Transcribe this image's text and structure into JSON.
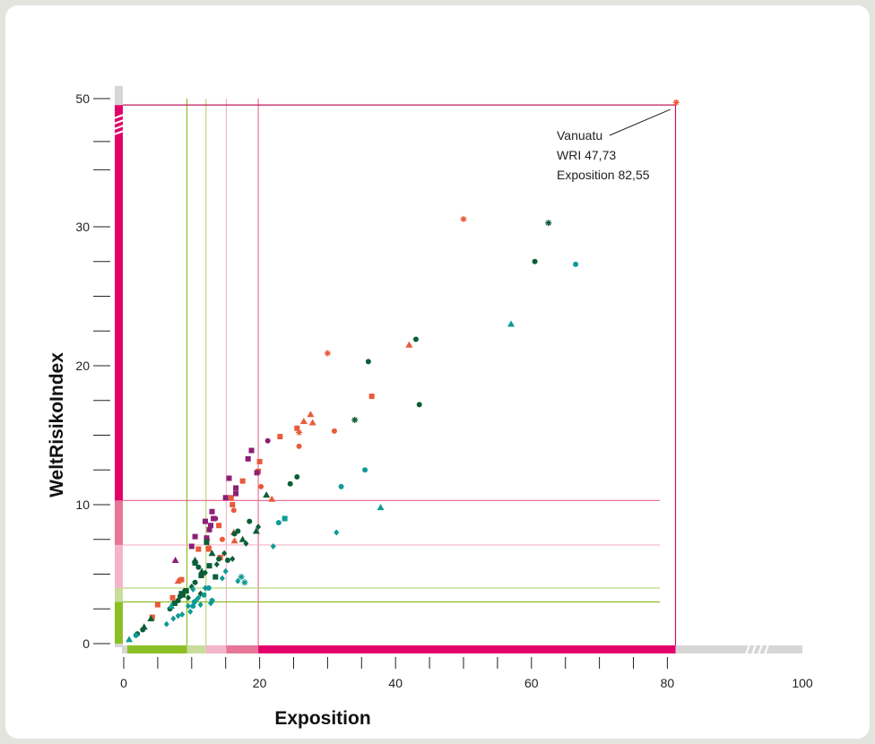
{
  "chart_data": {
    "type": "scatter",
    "title": "",
    "xlabel": "Exposition",
    "ylabel": "WeltRisikoIndex",
    "xlim": [
      0,
      100
    ],
    "ylim": [
      0,
      50
    ],
    "x_ticks": [
      0,
      20,
      40,
      60,
      80,
      100
    ],
    "y_ticks": [
      0,
      10,
      20,
      30,
      50
    ],
    "grid": false,
    "x_band_thresholds": [
      9.3,
      12.1,
      15.1,
      19.8
    ],
    "y_band_thresholds": [
      3.0,
      4.0,
      7.1,
      10.3
    ],
    "band_colors": [
      "#8cbf26",
      "#c8dd9b",
      "#f3b5c9",
      "#e67597",
      "#e2006a"
    ],
    "annotation": {
      "lines": [
        "Vanuatu",
        "WRI 47,73",
        "Exposition 82,55"
      ],
      "x": 81.2,
      "y": 49.0
    },
    "series": [
      {
        "color": "#e85b3a",
        "marker": "asterisk",
        "points": [
          [
            50.0,
            31.2
          ],
          [
            30.0,
            20.9
          ],
          [
            25.8,
            15.2
          ],
          [
            12.5,
            6.9
          ]
        ]
      },
      {
        "color": "#e85b3a",
        "marker": "triangle",
        "points": [
          [
            42.0,
            21.5
          ],
          [
            27.5,
            16.5
          ],
          [
            27.8,
            15.9
          ],
          [
            26.5,
            16.0
          ],
          [
            21.8,
            10.4
          ],
          [
            16.2,
            8.0
          ],
          [
            16.3,
            7.4
          ],
          [
            8.0,
            4.5
          ]
        ]
      },
      {
        "color": "#e85b3a",
        "marker": "square",
        "points": [
          [
            36.5,
            17.8
          ],
          [
            25.5,
            15.5
          ],
          [
            23.0,
            14.9
          ],
          [
            20.0,
            13.1
          ],
          [
            19.8,
            12.4
          ],
          [
            17.5,
            11.7
          ],
          [
            15.8,
            10.5
          ],
          [
            16.0,
            10.0
          ],
          [
            14.0,
            8.5
          ],
          [
            11.0,
            6.8
          ],
          [
            12.5,
            6.8
          ],
          [
            14.2,
            6.2
          ],
          [
            11.5,
            5.0
          ],
          [
            8.5,
            4.6
          ],
          [
            7.2,
            3.3
          ],
          [
            5.0,
            2.8
          ],
          [
            4.2,
            1.9
          ]
        ]
      },
      {
        "color": "#e85b3a",
        "marker": "circle",
        "points": [
          [
            31.0,
            15.3
          ],
          [
            25.8,
            14.2
          ],
          [
            20.2,
            11.3
          ],
          [
            16.2,
            9.6
          ],
          [
            14.5,
            7.5
          ],
          [
            12.3,
            7.5
          ]
        ]
      },
      {
        "color": "#8e1f76",
        "marker": "square",
        "points": [
          [
            18.8,
            13.9
          ],
          [
            19.6,
            12.3
          ],
          [
            18.3,
            13.3
          ],
          [
            15.5,
            11.9
          ],
          [
            16.5,
            11.2
          ],
          [
            15.0,
            10.5
          ],
          [
            16.5,
            10.8
          ],
          [
            13.0,
            9.5
          ],
          [
            13.2,
            9.0
          ],
          [
            12.0,
            8.8
          ],
          [
            12.8,
            8.5
          ],
          [
            12.6,
            8.2
          ],
          [
            12.2,
            7.6
          ],
          [
            10.0,
            7.0
          ],
          [
            10.5,
            7.7
          ]
        ]
      },
      {
        "color": "#8e1f76",
        "marker": "circle",
        "points": [
          [
            21.2,
            14.6
          ],
          [
            13.5,
            9.0
          ]
        ]
      },
      {
        "color": "#8e1f76",
        "marker": "triangle",
        "points": [
          [
            7.6,
            6.0
          ]
        ]
      },
      {
        "color": "#0b5e36",
        "marker": "circle",
        "points": [
          [
            60.5,
            27.5
          ],
          [
            43.0,
            21.9
          ],
          [
            36.0,
            20.3
          ],
          [
            43.5,
            17.2
          ],
          [
            25.5,
            12.0
          ],
          [
            24.5,
            11.5
          ],
          [
            18.5,
            8.8
          ],
          [
            16.8,
            8.1
          ],
          [
            16.3,
            7.9
          ],
          [
            14.0,
            6.1
          ],
          [
            15.3,
            6.0
          ],
          [
            11.0,
            5.5
          ],
          [
            10.5,
            4.4
          ],
          [
            9.0,
            3.8
          ],
          [
            8.3,
            3.4
          ],
          [
            8.0,
            3.1
          ],
          [
            6.8,
            2.5
          ],
          [
            2.8,
            1.0
          ],
          [
            2.0,
            0.7
          ]
        ]
      },
      {
        "color": "#0b5e36",
        "marker": "asterisk",
        "points": [
          [
            62.5,
            30.6
          ],
          [
            34.0,
            16.1
          ]
        ]
      },
      {
        "color": "#0b5e36",
        "marker": "triangle",
        "points": [
          [
            21.0,
            10.7
          ],
          [
            19.5,
            8.1
          ],
          [
            17.5,
            7.5
          ],
          [
            13.0,
            6.5
          ],
          [
            10.5,
            6.0
          ],
          [
            11.5,
            5.2
          ],
          [
            4.0,
            1.8
          ],
          [
            3.0,
            1.2
          ]
        ]
      },
      {
        "color": "#0b5e36",
        "marker": "square",
        "points": [
          [
            12.2,
            7.3
          ],
          [
            10.5,
            5.8
          ],
          [
            11.4,
            4.9
          ],
          [
            12.6,
            5.6
          ],
          [
            13.5,
            4.8
          ],
          [
            9.2,
            3.8
          ],
          [
            8.7,
            3.5
          ],
          [
            7.5,
            2.9
          ],
          [
            8.5,
            3.6
          ]
        ]
      },
      {
        "color": "#0b5e36",
        "marker": "diamond",
        "points": [
          [
            19.8,
            8.4
          ],
          [
            18.0,
            7.2
          ],
          [
            14.8,
            6.5
          ],
          [
            16.0,
            6.1
          ],
          [
            13.7,
            5.7
          ],
          [
            12.0,
            5.1
          ],
          [
            10.0,
            4.1
          ],
          [
            9.5,
            3.3
          ],
          [
            11.3,
            3.6
          ]
        ]
      },
      {
        "color": "#0f9a97",
        "marker": "circle",
        "points": [
          [
            66.5,
            27.3
          ],
          [
            35.5,
            12.5
          ],
          [
            32.0,
            11.3
          ],
          [
            22.8,
            8.7
          ],
          [
            12.5,
            4.0
          ],
          [
            11.8,
            3.5
          ],
          [
            13.0,
            3.1
          ],
          [
            10.4,
            3.0
          ],
          [
            10.2,
            2.7
          ],
          [
            1.8,
            0.6
          ]
        ]
      },
      {
        "color": "#0f9a97",
        "marker": "triangle",
        "points": [
          [
            57.0,
            23.0
          ],
          [
            37.8,
            9.8
          ],
          [
            7.0,
            2.7
          ],
          [
            0.8,
            0.3
          ]
        ]
      },
      {
        "color": "#0f9a97",
        "marker": "square",
        "points": [
          [
            23.7,
            9.0
          ]
        ]
      },
      {
        "color": "#0f9a97",
        "marker": "diamond",
        "points": [
          [
            31.3,
            8.0
          ],
          [
            22.0,
            7.0
          ],
          [
            16.8,
            4.5
          ],
          [
            15.0,
            5.2
          ],
          [
            14.5,
            4.7
          ],
          [
            12.0,
            4.0
          ],
          [
            11.0,
            3.3
          ],
          [
            10.6,
            3.1
          ],
          [
            9.5,
            2.7
          ],
          [
            9.8,
            2.3
          ],
          [
            8.6,
            2.1
          ],
          [
            8.0,
            2.0
          ],
          [
            7.3,
            1.8
          ],
          [
            6.3,
            1.4
          ],
          [
            11.3,
            2.8
          ],
          [
            10.2,
            3.9
          ],
          [
            12.8,
            2.9
          ]
        ]
      },
      {
        "color": "#0f9a97",
        "marker": "asterisk",
        "points": [
          [
            17.3,
            4.8
          ],
          [
            17.8,
            4.4
          ]
        ]
      }
    ]
  }
}
